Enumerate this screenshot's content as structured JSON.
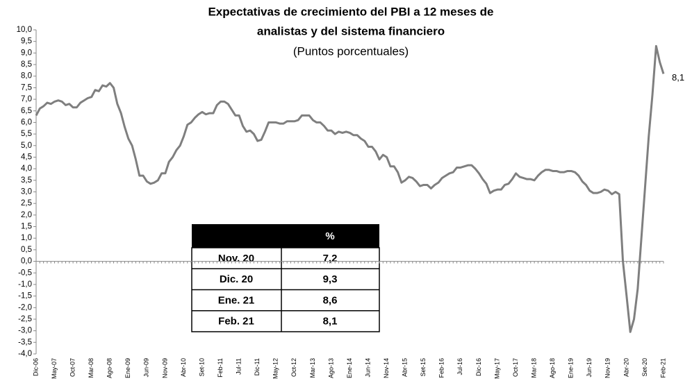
{
  "chart_data": {
    "type": "line",
    "title": [
      "Expectativas de crecimiento del PBI a 12 meses de",
      "analistas y del sistema financiero"
    ],
    "subtitle": "(Puntos porcentuales)",
    "annotation": "8,1",
    "categories": [
      "Dic-06",
      null,
      null,
      null,
      null,
      "May-07",
      null,
      null,
      null,
      null,
      "Oct-07",
      null,
      null,
      null,
      null,
      "Mar-08",
      null,
      null,
      null,
      null,
      "Ago-08",
      null,
      null,
      null,
      null,
      "Ene-09",
      null,
      null,
      null,
      null,
      "Jun-09",
      null,
      null,
      null,
      null,
      "Nov-09",
      null,
      null,
      null,
      null,
      "Abr-10",
      null,
      null,
      null,
      null,
      "Set-10",
      null,
      null,
      null,
      null,
      "Feb-11",
      null,
      null,
      null,
      null,
      "Jul-11",
      null,
      null,
      null,
      null,
      "Dic-11",
      null,
      null,
      null,
      null,
      "May-12",
      null,
      null,
      null,
      null,
      "Oct-12",
      null,
      null,
      null,
      null,
      "Mar-13",
      null,
      null,
      null,
      null,
      "Ago-13",
      null,
      null,
      null,
      null,
      "Ene-14",
      null,
      null,
      null,
      null,
      "Jun-14",
      null,
      null,
      null,
      null,
      "Nov-14",
      null,
      null,
      null,
      null,
      "Abr-15",
      null,
      null,
      null,
      null,
      "Set-15",
      null,
      null,
      null,
      null,
      "Feb-16",
      null,
      null,
      null,
      null,
      "Jul-16",
      null,
      null,
      null,
      null,
      "Dic-16",
      null,
      null,
      null,
      null,
      "May-17",
      null,
      null,
      null,
      null,
      "Oct-17",
      null,
      null,
      null,
      null,
      "Mar-18",
      null,
      null,
      null,
      null,
      "Ago-18",
      null,
      null,
      null,
      null,
      "Ene-19",
      null,
      null,
      null,
      null,
      "Jun-19",
      null,
      null,
      null,
      null,
      "Nov-19",
      null,
      null,
      null,
      null,
      "Abr-20",
      null,
      null,
      null,
      null,
      "Set-20",
      null,
      null,
      null,
      null,
      "Feb-21"
    ],
    "series": [
      {
        "color": "#7f7f7f",
        "values": [
          6.3,
          6.6,
          6.7,
          6.85,
          6.8,
          6.9,
          6.95,
          6.9,
          6.75,
          6.8,
          6.65,
          6.65,
          6.85,
          6.95,
          7.05,
          7.1,
          7.4,
          7.35,
          7.6,
          7.55,
          7.7,
          7.5,
          6.8,
          6.4,
          5.8,
          5.3,
          5.0,
          4.4,
          3.7,
          3.7,
          3.45,
          3.35,
          3.4,
          3.5,
          3.8,
          3.8,
          4.3,
          4.5,
          4.8,
          5.0,
          5.4,
          5.9,
          6.0,
          6.2,
          6.35,
          6.45,
          6.35,
          6.4,
          6.4,
          6.75,
          6.9,
          6.9,
          6.8,
          6.55,
          6.3,
          6.3,
          5.85,
          5.6,
          5.65,
          5.5,
          5.2,
          5.25,
          5.6,
          6.0,
          6.0,
          6.0,
          5.95,
          5.95,
          6.05,
          6.05,
          6.05,
          6.1,
          6.3,
          6.3,
          6.3,
          6.1,
          6.0,
          6.0,
          5.85,
          5.65,
          5.65,
          5.5,
          5.6,
          5.55,
          5.6,
          5.55,
          5.45,
          5.45,
          5.3,
          5.2,
          4.95,
          4.95,
          4.75,
          4.4,
          4.6,
          4.5,
          4.1,
          4.1,
          3.85,
          3.4,
          3.5,
          3.65,
          3.6,
          3.45,
          3.25,
          3.3,
          3.3,
          3.15,
          3.3,
          3.4,
          3.6,
          3.7,
          3.8,
          3.85,
          4.05,
          4.05,
          4.1,
          4.15,
          4.15,
          4.0,
          3.8,
          3.55,
          3.35,
          2.95,
          3.05,
          3.1,
          3.1,
          3.3,
          3.35,
          3.55,
          3.8,
          3.65,
          3.6,
          3.55,
          3.55,
          3.5,
          3.7,
          3.85,
          3.95,
          3.95,
          3.9,
          3.9,
          3.85,
          3.85,
          3.9,
          3.9,
          3.85,
          3.7,
          3.45,
          3.3,
          3.05,
          2.95,
          2.95,
          3.0,
          3.1,
          3.05,
          2.9,
          3.0,
          2.9,
          0.0,
          -1.5,
          -3.05,
          -2.5,
          -1.2,
          1.0,
          3.2,
          5.4,
          7.2,
          9.3,
          8.6,
          8.1
        ]
      }
    ],
    "ylim": [
      -4,
      10
    ],
    "yticks": [
      {
        "value": 10,
        "label": "10,0"
      },
      {
        "value": 9.5,
        "label": "9,5"
      },
      {
        "value": 9,
        "label": "9,0"
      },
      {
        "value": 8.5,
        "label": "8,5"
      },
      {
        "value": 8,
        "label": "8,0"
      },
      {
        "value": 7.5,
        "label": "7,5"
      },
      {
        "value": 7,
        "label": "7,0"
      },
      {
        "value": 6.5,
        "label": "6,5"
      },
      {
        "value": 6,
        "label": "6,0"
      },
      {
        "value": 5.5,
        "label": "5,5"
      },
      {
        "value": 5,
        "label": "5,0"
      },
      {
        "value": 4.5,
        "label": "4,5"
      },
      {
        "value": 4,
        "label": "4,0"
      },
      {
        "value": 3.5,
        "label": "3,5"
      },
      {
        "value": 3,
        "label": "3,0"
      },
      {
        "value": 2.5,
        "label": "2,5"
      },
      {
        "value": 2,
        "label": "2,0"
      },
      {
        "value": 1.5,
        "label": "1,5"
      },
      {
        "value": 1,
        "label": "1,0"
      },
      {
        "value": 0.5,
        "label": "0,5"
      },
      {
        "value": 0,
        "label": "0,0"
      },
      {
        "value": -0.5,
        "label": "-0,5"
      },
      {
        "value": -1,
        "label": "-1,0"
      },
      {
        "value": -1.5,
        "label": "-1,5"
      },
      {
        "value": -2,
        "label": "-2,0"
      },
      {
        "value": -2.5,
        "label": "-2,5"
      },
      {
        "value": -3,
        "label": "-3,0"
      },
      {
        "value": -3.5,
        "label": "-3,5"
      },
      {
        "value": -4,
        "label": "-4,0"
      }
    ],
    "grid": false,
    "table": {
      "header": "%",
      "rows": [
        [
          "Nov. 20",
          "7,2"
        ],
        [
          "Dic. 20",
          "9,3"
        ],
        [
          "Ene. 21",
          "8,6"
        ],
        [
          "Feb. 21",
          "8,1"
        ]
      ]
    }
  }
}
